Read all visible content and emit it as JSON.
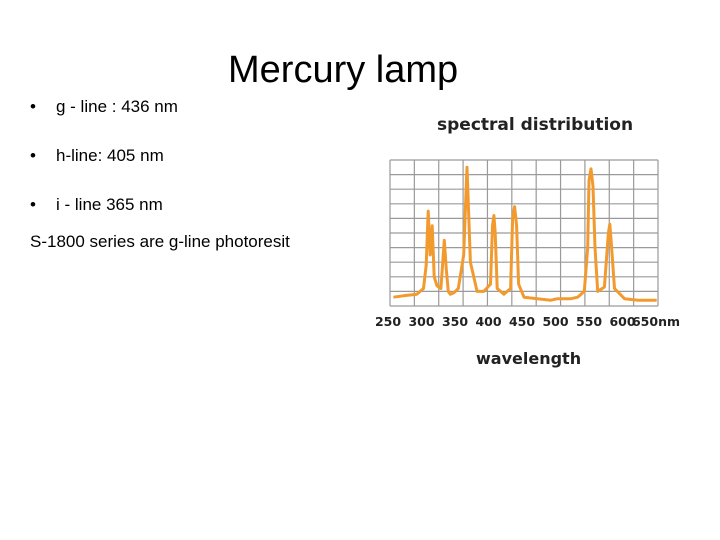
{
  "slide": {
    "title": "Mercury lamp",
    "bullets": [
      {
        "symbol": "•",
        "text": "g - line : 436 nm"
      },
      {
        "symbol": "•",
        "text": "h-line: 405 nm"
      },
      {
        "symbol": "•",
        "text": "i - line 365 nm"
      }
    ],
    "note": "S-1800 series are g-line photoresit"
  },
  "chart_data": {
    "type": "line",
    "title": "spectral distribution",
    "xlabel": "wavelength",
    "ylabel": "",
    "xlim": [
      250,
      650
    ],
    "xticks": [
      "250",
      "300",
      "350",
      "400",
      "450",
      "500",
      "550",
      "600",
      "650nm"
    ],
    "ylim": [
      0,
      1
    ],
    "grid": true,
    "line_color": "#f39a2e",
    "grid_color": "#9a9a9a",
    "series": [
      {
        "x": [
          255,
          270,
          290,
          300,
          304,
          307,
          310,
          313,
          316,
          320,
          326,
          331,
          334,
          337,
          340,
          345,
          352,
          360,
          364,
          365,
          366,
          370,
          380,
          390,
          400,
          403,
          405,
          407,
          410,
          420,
          430,
          433,
          436,
          439,
          442,
          450,
          470,
          490,
          500,
          510,
          520,
          530,
          540,
          545,
          547,
          550,
          553,
          556,
          560,
          570,
          576,
          578,
          580,
          585,
          600,
          620,
          640,
          648
        ],
        "y": [
          0.06,
          0.07,
          0.08,
          0.12,
          0.28,
          0.65,
          0.35,
          0.55,
          0.2,
          0.14,
          0.12,
          0.45,
          0.25,
          0.1,
          0.08,
          0.09,
          0.12,
          0.35,
          0.85,
          0.95,
          0.82,
          0.3,
          0.1,
          0.1,
          0.15,
          0.55,
          0.62,
          0.5,
          0.12,
          0.08,
          0.12,
          0.6,
          0.68,
          0.55,
          0.15,
          0.06,
          0.05,
          0.04,
          0.05,
          0.05,
          0.05,
          0.06,
          0.1,
          0.4,
          0.86,
          0.94,
          0.82,
          0.4,
          0.1,
          0.13,
          0.5,
          0.56,
          0.45,
          0.12,
          0.05,
          0.04,
          0.04,
          0.04
        ]
      }
    ]
  }
}
